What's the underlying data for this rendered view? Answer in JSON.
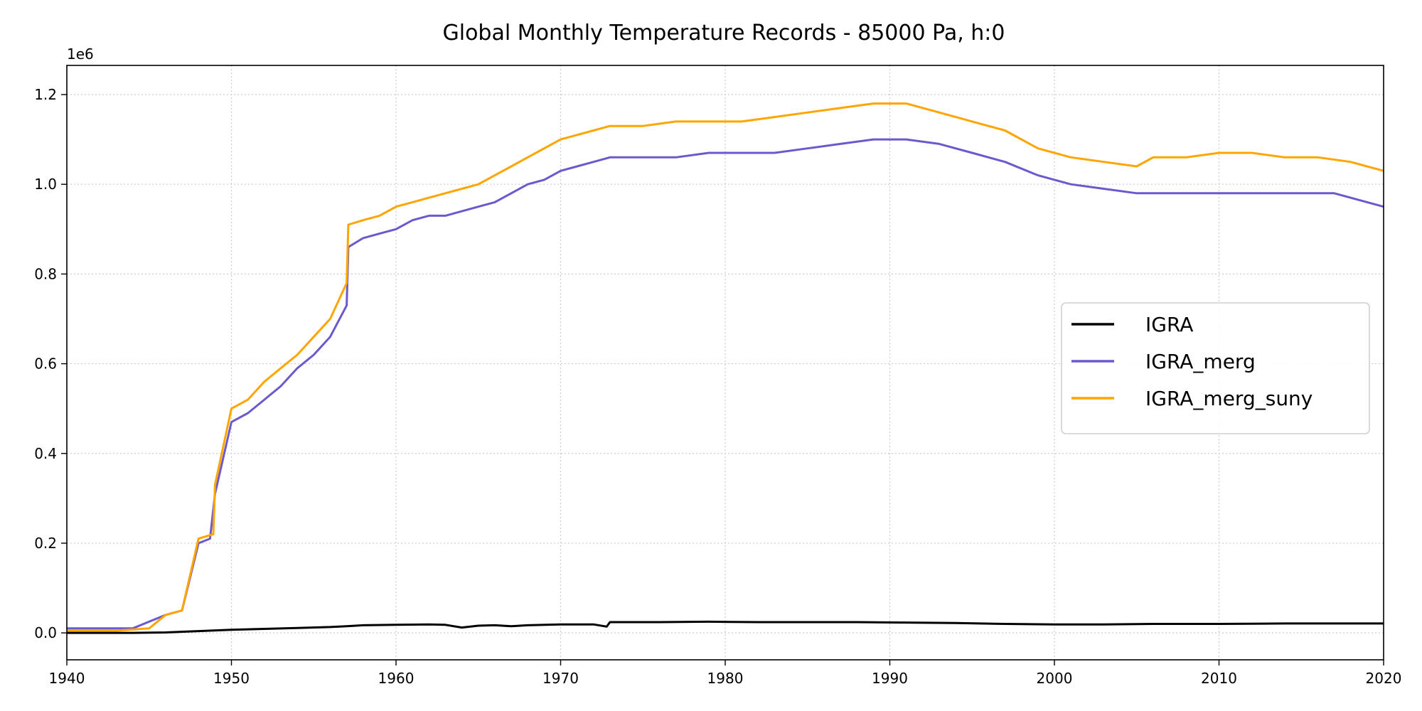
{
  "chart_data": {
    "type": "line",
    "title": "Global Monthly Temperature Records - 85000 Pa, h:0",
    "xlabel": "",
    "ylabel": "",
    "y_offset_label": "1e6",
    "xlim": [
      1940,
      2020
    ],
    "ylim": [
      -0.06,
      1.265
    ],
    "y_multiplier": 1000000,
    "grid": true,
    "legend_position": "right",
    "x_ticks": [
      1940,
      1950,
      1960,
      1970,
      1980,
      1990,
      2000,
      2010,
      2020
    ],
    "y_ticks": [
      0.0,
      0.2,
      0.4,
      0.6,
      0.8,
      1.0,
      1.2
    ],
    "x_tick_labels": [
      "1940",
      "1950",
      "1960",
      "1970",
      "1980",
      "1990",
      "2000",
      "2010",
      "2020"
    ],
    "y_tick_labels": [
      "0.0",
      "0.2",
      "0.4",
      "0.6",
      "0.8",
      "1.0",
      "1.2"
    ],
    "series": [
      {
        "name": "IGRA",
        "color": "#000000",
        "points": [
          [
            1940,
            0.0
          ],
          [
            1944,
            0.0
          ],
          [
            1946,
            0.001
          ],
          [
            1948,
            0.004
          ],
          [
            1950,
            0.007
          ],
          [
            1952,
            0.009
          ],
          [
            1954,
            0.011
          ],
          [
            1956,
            0.013
          ],
          [
            1957,
            0.015
          ],
          [
            1958,
            0.017
          ],
          [
            1960,
            0.018
          ],
          [
            1962,
            0.019
          ],
          [
            1963,
            0.018
          ],
          [
            1964,
            0.012
          ],
          [
            1965,
            0.016
          ],
          [
            1966,
            0.017
          ],
          [
            1967,
            0.015
          ],
          [
            1968,
            0.017
          ],
          [
            1970,
            0.019
          ],
          [
            1972,
            0.019
          ],
          [
            1972.8,
            0.014
          ],
          [
            1973,
            0.024
          ],
          [
            1976,
            0.024
          ],
          [
            1979,
            0.025
          ],
          [
            1982,
            0.024
          ],
          [
            1985,
            0.024
          ],
          [
            1988,
            0.024
          ],
          [
            1991,
            0.023
          ],
          [
            1994,
            0.022
          ],
          [
            1997,
            0.02
          ],
          [
            2000,
            0.019
          ],
          [
            2003,
            0.019
          ],
          [
            2006,
            0.02
          ],
          [
            2010,
            0.02
          ],
          [
            2014,
            0.021
          ],
          [
            2017,
            0.021
          ],
          [
            2020,
            0.021
          ]
        ]
      },
      {
        "name": "IGRA_merg",
        "color": "#6a5acd",
        "points": [
          [
            1940,
            0.01
          ],
          [
            1942,
            0.01
          ],
          [
            1944,
            0.01
          ],
          [
            1946,
            0.04
          ],
          [
            1947,
            0.05
          ],
          [
            1948,
            0.2
          ],
          [
            1948.7,
            0.21
          ],
          [
            1949,
            0.31
          ],
          [
            1950,
            0.47
          ],
          [
            1951,
            0.49
          ],
          [
            1952,
            0.52
          ],
          [
            1953,
            0.55
          ],
          [
            1954,
            0.59
          ],
          [
            1955,
            0.62
          ],
          [
            1956,
            0.66
          ],
          [
            1957,
            0.73
          ],
          [
            1957.1,
            0.86
          ],
          [
            1958,
            0.88
          ],
          [
            1959,
            0.89
          ],
          [
            1960,
            0.9
          ],
          [
            1961,
            0.92
          ],
          [
            1962,
            0.93
          ],
          [
            1963,
            0.93
          ],
          [
            1964,
            0.94
          ],
          [
            1965,
            0.95
          ],
          [
            1966,
            0.96
          ],
          [
            1967,
            0.98
          ],
          [
            1968,
            1.0
          ],
          [
            1969,
            1.01
          ],
          [
            1970,
            1.03
          ],
          [
            1971,
            1.04
          ],
          [
            1972,
            1.05
          ],
          [
            1973,
            1.06
          ],
          [
            1975,
            1.06
          ],
          [
            1977,
            1.06
          ],
          [
            1979,
            1.07
          ],
          [
            1981,
            1.07
          ],
          [
            1983,
            1.07
          ],
          [
            1985,
            1.08
          ],
          [
            1987,
            1.09
          ],
          [
            1989,
            1.1
          ],
          [
            1991,
            1.1
          ],
          [
            1993,
            1.09
          ],
          [
            1995,
            1.07
          ],
          [
            1997,
            1.05
          ],
          [
            1999,
            1.02
          ],
          [
            2001,
            1.0
          ],
          [
            2003,
            0.99
          ],
          [
            2005,
            0.98
          ],
          [
            2007,
            0.98
          ],
          [
            2009,
            0.98
          ],
          [
            2011,
            0.98
          ],
          [
            2013,
            0.98
          ],
          [
            2015,
            0.98
          ],
          [
            2017,
            0.98
          ],
          [
            2019,
            0.96
          ],
          [
            2020,
            0.95
          ]
        ]
      },
      {
        "name": "IGRA_merg_suny",
        "color": "#ffa500",
        "points": [
          [
            1940,
            0.005
          ],
          [
            1943,
            0.005
          ],
          [
            1945,
            0.01
          ],
          [
            1946,
            0.04
          ],
          [
            1947,
            0.05
          ],
          [
            1948,
            0.21
          ],
          [
            1948.9,
            0.22
          ],
          [
            1949,
            0.33
          ],
          [
            1950,
            0.5
          ],
          [
            1951,
            0.52
          ],
          [
            1952,
            0.56
          ],
          [
            1953,
            0.59
          ],
          [
            1954,
            0.62
          ],
          [
            1955,
            0.66
          ],
          [
            1956,
            0.7
          ],
          [
            1957,
            0.78
          ],
          [
            1957.1,
            0.91
          ],
          [
            1958,
            0.92
          ],
          [
            1959,
            0.93
          ],
          [
            1960,
            0.95
          ],
          [
            1961,
            0.96
          ],
          [
            1962,
            0.97
          ],
          [
            1963,
            0.98
          ],
          [
            1964,
            0.99
          ],
          [
            1965,
            1.0
          ],
          [
            1966,
            1.02
          ],
          [
            1967,
            1.04
          ],
          [
            1968,
            1.06
          ],
          [
            1969,
            1.08
          ],
          [
            1970,
            1.1
          ],
          [
            1971,
            1.11
          ],
          [
            1972,
            1.12
          ],
          [
            1973,
            1.13
          ],
          [
            1975,
            1.13
          ],
          [
            1977,
            1.14
          ],
          [
            1979,
            1.14
          ],
          [
            1981,
            1.14
          ],
          [
            1983,
            1.15
          ],
          [
            1985,
            1.16
          ],
          [
            1987,
            1.17
          ],
          [
            1989,
            1.18
          ],
          [
            1991,
            1.18
          ],
          [
            1993,
            1.16
          ],
          [
            1995,
            1.14
          ],
          [
            1997,
            1.12
          ],
          [
            1999,
            1.08
          ],
          [
            2001,
            1.06
          ],
          [
            2003,
            1.05
          ],
          [
            2005,
            1.04
          ],
          [
            2006,
            1.06
          ],
          [
            2008,
            1.06
          ],
          [
            2010,
            1.07
          ],
          [
            2012,
            1.07
          ],
          [
            2014,
            1.06
          ],
          [
            2016,
            1.06
          ],
          [
            2018,
            1.05
          ],
          [
            2020,
            1.03
          ]
        ]
      }
    ]
  }
}
